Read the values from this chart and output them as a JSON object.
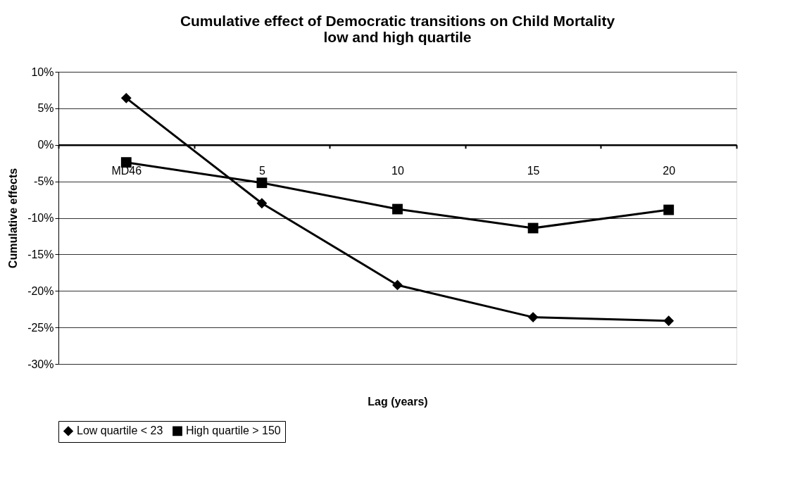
{
  "chart_data": {
    "type": "line",
    "title": "Cumulative effect of Democratic transitions on Child Mortality\nlow and high quartile",
    "xlabel": "Lag (years)",
    "ylabel": "Cumulative effects",
    "categories": [
      "MD46",
      "5",
      "10",
      "15",
      "20"
    ],
    "series": [
      {
        "name": "Low quartile < 23",
        "color": "#000000",
        "marker": "diamond",
        "values": [
          6.4,
          -8.0,
          -19.2,
          -23.6,
          -24.1
        ]
      },
      {
        "name": "High quartile > 150",
        "color": "#000000",
        "marker": "square",
        "values": [
          -2.4,
          -5.2,
          -8.8,
          -11.4,
          -8.9
        ]
      }
    ],
    "ylim": [
      -30,
      10
    ],
    "yticks": [
      {
        "value": -30,
        "label": "-30%"
      },
      {
        "value": -25,
        "label": "-25%"
      },
      {
        "value": -20,
        "label": "-20%"
      },
      {
        "value": -15,
        "label": "-15%"
      },
      {
        "value": -10,
        "label": "-10%"
      },
      {
        "value": -5,
        "label": "-5%"
      },
      {
        "value": 0,
        "label": "0%"
      },
      {
        "value": 5,
        "label": "5%"
      },
      {
        "value": 10,
        "label": "10%"
      }
    ],
    "grid": "y",
    "legend": "bottom",
    "line_style": "solid"
  }
}
